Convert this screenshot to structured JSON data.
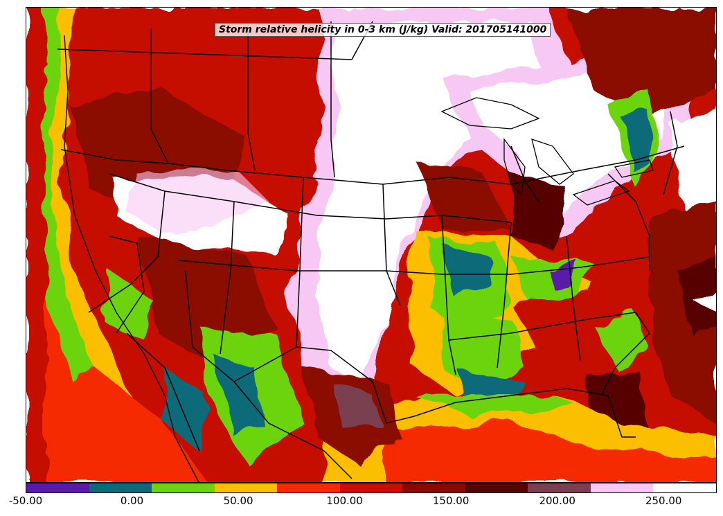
{
  "title": "Storm relative helicity in 0-3 km (J/kg) Valid: 201705141000",
  "colorbar": {
    "colors": [
      "#5a1aa8",
      "#0b6b78",
      "#6cd40c",
      "#fbbf00",
      "#f52b00",
      "#c51000",
      "#8a0800",
      "#560400",
      "#7a4050",
      "#f8c8f4",
      "#ffffff"
    ],
    "tick_labels": [
      "-50.00",
      "0.00",
      "50.00",
      "100.00",
      "150.00",
      "200.00",
      "250.00"
    ],
    "tick_values": [
      -50,
      0,
      50,
      100,
      150,
      200,
      250
    ],
    "range": [
      -50,
      275
    ]
  },
  "map": {
    "region": "Contiguous United States",
    "overlays": [
      "state boundaries",
      "country boundaries",
      "coastlines",
      "lakes"
    ]
  }
}
